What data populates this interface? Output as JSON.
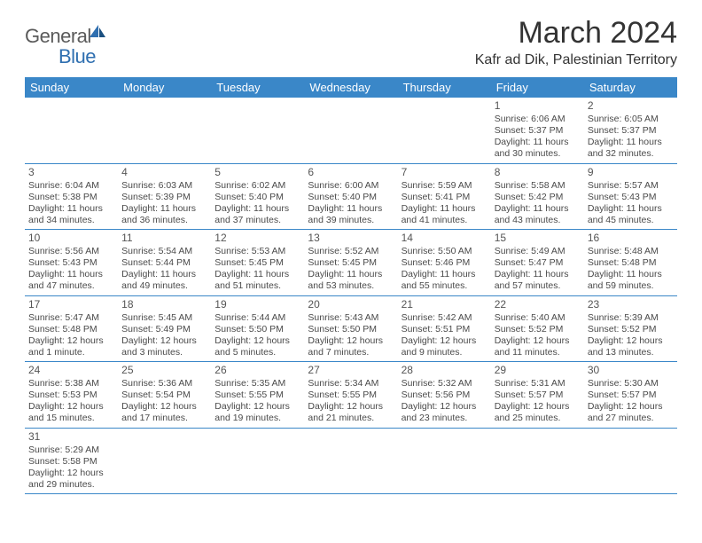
{
  "logo": {
    "general": "General",
    "blue": "Blue"
  },
  "title": "March 2024",
  "location": "Kafr ad Dik, Palestinian Territory",
  "weekdays": [
    "Sunday",
    "Monday",
    "Tuesday",
    "Wednesday",
    "Thursday",
    "Friday",
    "Saturday"
  ],
  "colors": {
    "header_bg": "#3a87c8",
    "header_text": "#ffffff",
    "row_border": "#3a87c8",
    "text": "#4a4a4a",
    "logo_gray": "#5a5a5a",
    "logo_blue": "#2f6fb0"
  },
  "weeks": [
    [
      {
        "n": "",
        "sr": "",
        "ss": "",
        "dl": ""
      },
      {
        "n": "",
        "sr": "",
        "ss": "",
        "dl": ""
      },
      {
        "n": "",
        "sr": "",
        "ss": "",
        "dl": ""
      },
      {
        "n": "",
        "sr": "",
        "ss": "",
        "dl": ""
      },
      {
        "n": "",
        "sr": "",
        "ss": "",
        "dl": ""
      },
      {
        "n": "1",
        "sr": "Sunrise: 6:06 AM",
        "ss": "Sunset: 5:37 PM",
        "dl": "Daylight: 11 hours and 30 minutes."
      },
      {
        "n": "2",
        "sr": "Sunrise: 6:05 AM",
        "ss": "Sunset: 5:37 PM",
        "dl": "Daylight: 11 hours and 32 minutes."
      }
    ],
    [
      {
        "n": "3",
        "sr": "Sunrise: 6:04 AM",
        "ss": "Sunset: 5:38 PM",
        "dl": "Daylight: 11 hours and 34 minutes."
      },
      {
        "n": "4",
        "sr": "Sunrise: 6:03 AM",
        "ss": "Sunset: 5:39 PM",
        "dl": "Daylight: 11 hours and 36 minutes."
      },
      {
        "n": "5",
        "sr": "Sunrise: 6:02 AM",
        "ss": "Sunset: 5:40 PM",
        "dl": "Daylight: 11 hours and 37 minutes."
      },
      {
        "n": "6",
        "sr": "Sunrise: 6:00 AM",
        "ss": "Sunset: 5:40 PM",
        "dl": "Daylight: 11 hours and 39 minutes."
      },
      {
        "n": "7",
        "sr": "Sunrise: 5:59 AM",
        "ss": "Sunset: 5:41 PM",
        "dl": "Daylight: 11 hours and 41 minutes."
      },
      {
        "n": "8",
        "sr": "Sunrise: 5:58 AM",
        "ss": "Sunset: 5:42 PM",
        "dl": "Daylight: 11 hours and 43 minutes."
      },
      {
        "n": "9",
        "sr": "Sunrise: 5:57 AM",
        "ss": "Sunset: 5:43 PM",
        "dl": "Daylight: 11 hours and 45 minutes."
      }
    ],
    [
      {
        "n": "10",
        "sr": "Sunrise: 5:56 AM",
        "ss": "Sunset: 5:43 PM",
        "dl": "Daylight: 11 hours and 47 minutes."
      },
      {
        "n": "11",
        "sr": "Sunrise: 5:54 AM",
        "ss": "Sunset: 5:44 PM",
        "dl": "Daylight: 11 hours and 49 minutes."
      },
      {
        "n": "12",
        "sr": "Sunrise: 5:53 AM",
        "ss": "Sunset: 5:45 PM",
        "dl": "Daylight: 11 hours and 51 minutes."
      },
      {
        "n": "13",
        "sr": "Sunrise: 5:52 AM",
        "ss": "Sunset: 5:45 PM",
        "dl": "Daylight: 11 hours and 53 minutes."
      },
      {
        "n": "14",
        "sr": "Sunrise: 5:50 AM",
        "ss": "Sunset: 5:46 PM",
        "dl": "Daylight: 11 hours and 55 minutes."
      },
      {
        "n": "15",
        "sr": "Sunrise: 5:49 AM",
        "ss": "Sunset: 5:47 PM",
        "dl": "Daylight: 11 hours and 57 minutes."
      },
      {
        "n": "16",
        "sr": "Sunrise: 5:48 AM",
        "ss": "Sunset: 5:48 PM",
        "dl": "Daylight: 11 hours and 59 minutes."
      }
    ],
    [
      {
        "n": "17",
        "sr": "Sunrise: 5:47 AM",
        "ss": "Sunset: 5:48 PM",
        "dl": "Daylight: 12 hours and 1 minute."
      },
      {
        "n": "18",
        "sr": "Sunrise: 5:45 AM",
        "ss": "Sunset: 5:49 PM",
        "dl": "Daylight: 12 hours and 3 minutes."
      },
      {
        "n": "19",
        "sr": "Sunrise: 5:44 AM",
        "ss": "Sunset: 5:50 PM",
        "dl": "Daylight: 12 hours and 5 minutes."
      },
      {
        "n": "20",
        "sr": "Sunrise: 5:43 AM",
        "ss": "Sunset: 5:50 PM",
        "dl": "Daylight: 12 hours and 7 minutes."
      },
      {
        "n": "21",
        "sr": "Sunrise: 5:42 AM",
        "ss": "Sunset: 5:51 PM",
        "dl": "Daylight: 12 hours and 9 minutes."
      },
      {
        "n": "22",
        "sr": "Sunrise: 5:40 AM",
        "ss": "Sunset: 5:52 PM",
        "dl": "Daylight: 12 hours and 11 minutes."
      },
      {
        "n": "23",
        "sr": "Sunrise: 5:39 AM",
        "ss": "Sunset: 5:52 PM",
        "dl": "Daylight: 12 hours and 13 minutes."
      }
    ],
    [
      {
        "n": "24",
        "sr": "Sunrise: 5:38 AM",
        "ss": "Sunset: 5:53 PM",
        "dl": "Daylight: 12 hours and 15 minutes."
      },
      {
        "n": "25",
        "sr": "Sunrise: 5:36 AM",
        "ss": "Sunset: 5:54 PM",
        "dl": "Daylight: 12 hours and 17 minutes."
      },
      {
        "n": "26",
        "sr": "Sunrise: 5:35 AM",
        "ss": "Sunset: 5:55 PM",
        "dl": "Daylight: 12 hours and 19 minutes."
      },
      {
        "n": "27",
        "sr": "Sunrise: 5:34 AM",
        "ss": "Sunset: 5:55 PM",
        "dl": "Daylight: 12 hours and 21 minutes."
      },
      {
        "n": "28",
        "sr": "Sunrise: 5:32 AM",
        "ss": "Sunset: 5:56 PM",
        "dl": "Daylight: 12 hours and 23 minutes."
      },
      {
        "n": "29",
        "sr": "Sunrise: 5:31 AM",
        "ss": "Sunset: 5:57 PM",
        "dl": "Daylight: 12 hours and 25 minutes."
      },
      {
        "n": "30",
        "sr": "Sunrise: 5:30 AM",
        "ss": "Sunset: 5:57 PM",
        "dl": "Daylight: 12 hours and 27 minutes."
      }
    ],
    [
      {
        "n": "31",
        "sr": "Sunrise: 5:29 AM",
        "ss": "Sunset: 5:58 PM",
        "dl": "Daylight: 12 hours and 29 minutes."
      },
      {
        "n": "",
        "sr": "",
        "ss": "",
        "dl": ""
      },
      {
        "n": "",
        "sr": "",
        "ss": "",
        "dl": ""
      },
      {
        "n": "",
        "sr": "",
        "ss": "",
        "dl": ""
      },
      {
        "n": "",
        "sr": "",
        "ss": "",
        "dl": ""
      },
      {
        "n": "",
        "sr": "",
        "ss": "",
        "dl": ""
      },
      {
        "n": "",
        "sr": "",
        "ss": "",
        "dl": ""
      }
    ]
  ]
}
